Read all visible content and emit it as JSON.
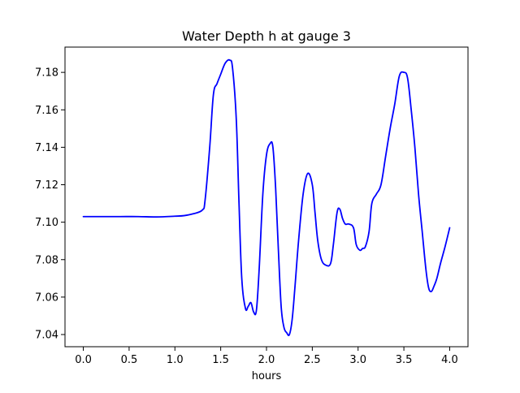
{
  "chart_data": {
    "type": "line",
    "title": "Water Depth h at gauge 3",
    "xlabel": "hours",
    "ylabel": "",
    "xlim": [
      -0.2,
      4.2
    ],
    "ylim": [
      7.0335,
      7.1935
    ],
    "xticks": [
      0.0,
      0.5,
      1.0,
      1.5,
      2.0,
      2.5,
      3.0,
      3.5,
      4.0
    ],
    "xtick_labels": [
      "0.0",
      "0.5",
      "1.0",
      "1.5",
      "2.0",
      "2.5",
      "3.0",
      "3.5",
      "4.0"
    ],
    "yticks": [
      7.04,
      7.06,
      7.08,
      7.1,
      7.12,
      7.14,
      7.16,
      7.18
    ],
    "ytick_labels": [
      "7.04",
      "7.06",
      "7.08",
      "7.10",
      "7.12",
      "7.14",
      "7.16",
      "7.18"
    ],
    "grid": false,
    "series": [
      {
        "color": "#0000ff",
        "x": [
          0.0,
          0.2,
          0.4,
          0.6,
          0.8,
          1.0,
          1.1,
          1.2,
          1.3,
          1.33,
          1.38,
          1.42,
          1.46,
          1.5,
          1.55,
          1.6,
          1.63,
          1.67,
          1.7,
          1.73,
          1.77,
          1.8,
          1.83,
          1.86,
          1.89,
          1.92,
          1.96,
          2.0,
          2.04,
          2.07,
          2.1,
          2.13,
          2.16,
          2.19,
          2.22,
          2.25,
          2.28,
          2.31,
          2.35,
          2.4,
          2.45,
          2.5,
          2.53,
          2.56,
          2.6,
          2.65,
          2.7,
          2.73,
          2.77,
          2.8,
          2.83,
          2.86,
          2.9,
          2.95,
          2.98,
          3.02,
          3.05,
          3.08,
          3.12,
          3.15,
          3.2,
          3.25,
          3.3,
          3.35,
          3.4,
          3.45,
          3.5,
          3.54,
          3.58,
          3.62,
          3.66,
          3.7,
          3.74,
          3.77,
          3.8,
          3.83,
          3.86,
          3.9,
          3.95,
          4.0
        ],
        "y": [
          7.103,
          7.103,
          7.103,
          7.103,
          7.1028,
          7.1032,
          7.1035,
          7.1045,
          7.1065,
          7.112,
          7.14,
          7.168,
          7.174,
          7.179,
          7.185,
          7.1865,
          7.182,
          7.155,
          7.11,
          7.07,
          7.054,
          7.055,
          7.057,
          7.052,
          7.053,
          7.075,
          7.115,
          7.136,
          7.142,
          7.14,
          7.118,
          7.085,
          7.055,
          7.044,
          7.041,
          7.04,
          7.048,
          7.065,
          7.09,
          7.115,
          7.126,
          7.12,
          7.105,
          7.09,
          7.08,
          7.077,
          7.078,
          7.088,
          7.105,
          7.107,
          7.102,
          7.099,
          7.099,
          7.097,
          7.088,
          7.085,
          7.086,
          7.087,
          7.095,
          7.11,
          7.115,
          7.12,
          7.135,
          7.15,
          7.163,
          7.178,
          7.18,
          7.177,
          7.16,
          7.14,
          7.115,
          7.095,
          7.075,
          7.065,
          7.063,
          7.066,
          7.07,
          7.078,
          7.087,
          7.097
        ]
      }
    ]
  }
}
